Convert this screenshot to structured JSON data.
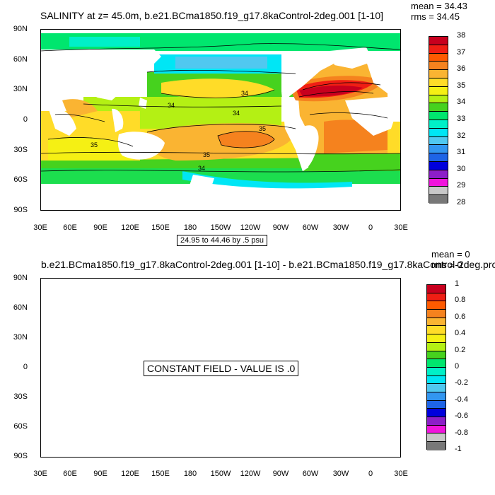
{
  "plot1": {
    "title": "SALINITY at z=  45.0m, b.e21.BCma1850.f19_g17.8kaControl-2deg.001 [1-10]",
    "mean": "mean = 34.43",
    "rms": "rms = 34.45",
    "info": "24.95 to 44.46 by .5 psu",
    "contour_labels": [
      "34",
      "34",
      "34",
      "35",
      "35",
      "35",
      "34"
    ],
    "colorbar_labels": [
      "38",
      "37",
      "36",
      "35",
      "34",
      "33",
      "32",
      "31",
      "30",
      "29",
      "28"
    ],
    "colorbar_colors": [
      "#c8001e",
      "#f01e14",
      "#ff5a00",
      "#f5821e",
      "#fab432",
      "#ffdc28",
      "#f5f014",
      "#b4f014",
      "#46d21e",
      "#00e66e",
      "#00f0c8",
      "#00e6f5",
      "#50c8f0",
      "#3296f0",
      "#1e64e6",
      "#0000dc",
      "#8c1ec8",
      "#f014dc",
      "#c8c8c8",
      "#787878"
    ]
  },
  "plot2": {
    "title": "b.e21.BCma1850.f19_g17.8kaControl-2deg.001 [1-10] - b.e21.BCma1850.f19_g17.8kaControl-2deg.pro",
    "mean": "mean = 0",
    "rms": "rms = 0",
    "message": "CONSTANT FIELD - VALUE IS .0",
    "colorbar_labels": [
      "1",
      "0.8",
      "0.6",
      "0.4",
      "0.2",
      "0",
      "-0.2",
      "-0.4",
      "-0.6",
      "-0.8",
      "-1"
    ],
    "colorbar_colors": [
      "#c8001e",
      "#f01e14",
      "#ff5a00",
      "#f5821e",
      "#fab432",
      "#ffdc28",
      "#f5f014",
      "#b4f014",
      "#46d21e",
      "#00e66e",
      "#00f0c8",
      "#00e6f5",
      "#50c8f0",
      "#3296f0",
      "#1e64e6",
      "#0000dc",
      "#8c1ec8",
      "#f014dc",
      "#c8c8c8",
      "#787878"
    ]
  },
  "axes": {
    "lat_labels": [
      "90N",
      "60N",
      "30N",
      "0",
      "30S",
      "60S",
      "90S"
    ],
    "lon_labels": [
      "30E",
      "60E",
      "90E",
      "120E",
      "150E",
      "180",
      "150W",
      "120W",
      "90W",
      "60W",
      "30W",
      "0",
      "30E"
    ]
  }
}
